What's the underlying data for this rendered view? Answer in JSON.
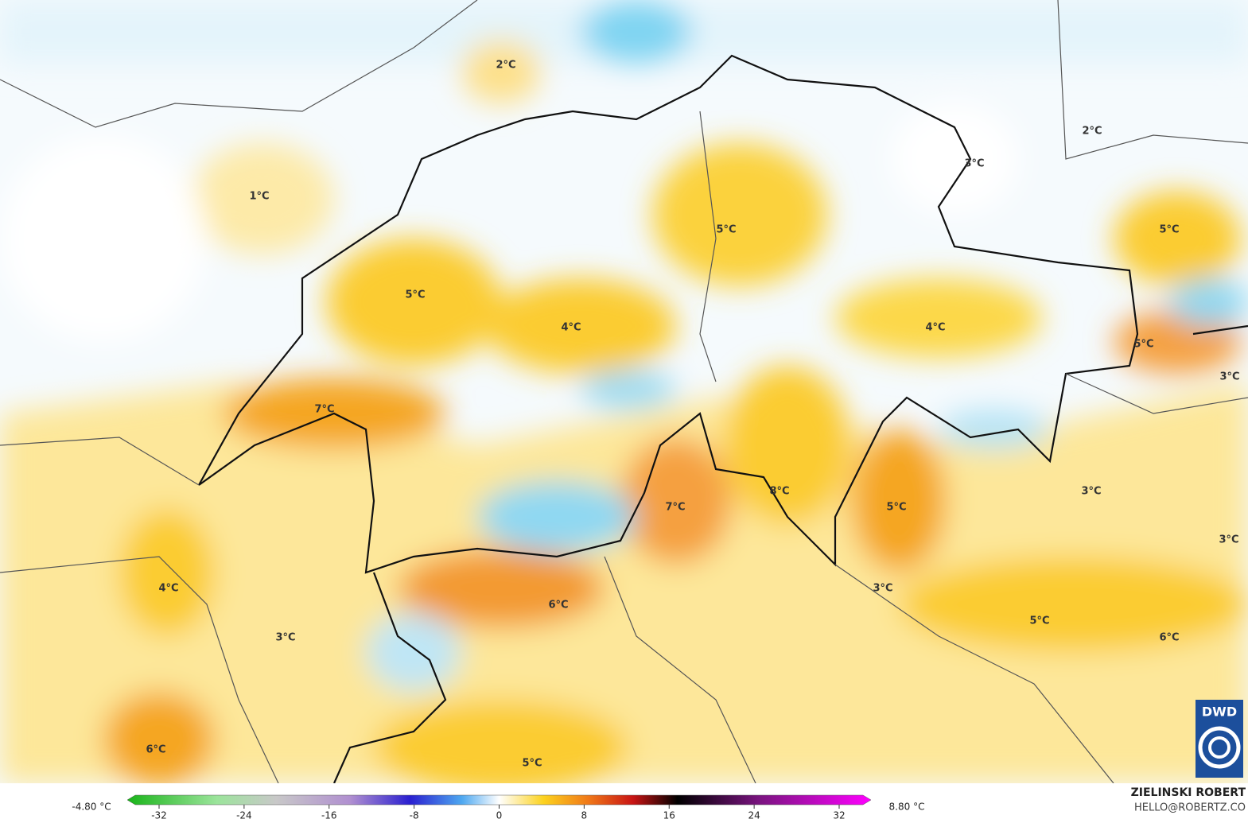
{
  "map": {
    "labels": [
      "2°C",
      "1°C",
      "5°C",
      "5°C",
      "4°C",
      "4°C",
      "3°C",
      "2°C",
      "5°C",
      "5°C",
      "3°C",
      "7°C",
      "7°C",
      "8°C",
      "5°C",
      "3°C",
      "3°C",
      "4°C",
      "6°C",
      "3°C",
      "5°C",
      "6°C",
      "3°C",
      "6°C",
      "5°C"
    ]
  },
  "legend": {
    "min_label": "-4.80 °C",
    "max_label": "8.80 °C",
    "ticks": [
      -32,
      -24,
      -16,
      -8,
      0,
      8,
      16,
      24,
      32
    ]
  },
  "credits": {
    "name": "ZIELINSKI ROBERT",
    "contact": "HELLO@ROBERTZ.CO",
    "logo": "DWD"
  }
}
